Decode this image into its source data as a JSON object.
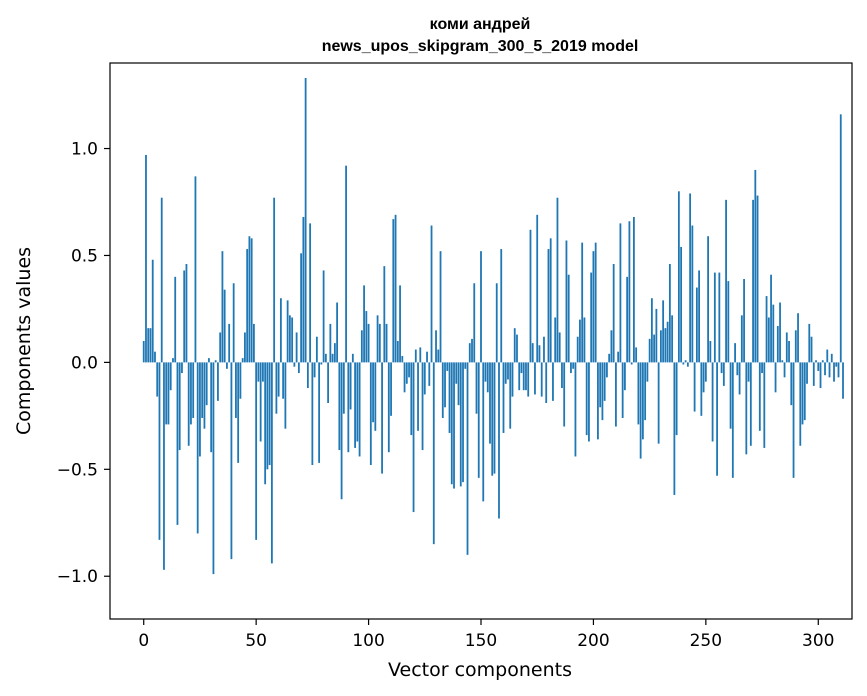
{
  "chart_data": {
    "type": "bar",
    "title": [
      "коми андрей",
      "news_upos_skipgram_300_5_2019 model"
    ],
    "xlabel": "Vector components",
    "ylabel": "Components values",
    "xlim": [
      -15,
      315
    ],
    "ylim": [
      -1.2,
      1.4
    ],
    "xticks": [
      0,
      50,
      100,
      150,
      200,
      250,
      300
    ],
    "xtick_labels": [
      "0",
      "50",
      "100",
      "150",
      "200",
      "250",
      "300"
    ],
    "yticks": [
      -1.0,
      -0.5,
      0.0,
      0.5,
      1.0
    ],
    "ytick_labels": [
      "−1.0",
      "−0.5",
      "0.0",
      "0.5",
      "1.0"
    ],
    "grid": false,
    "bar_color": "#1f77b4",
    "values": [
      0.1,
      0.97,
      0.16,
      0.16,
      0.48,
      0.05,
      -0.16,
      -0.83,
      0.77,
      -0.97,
      -0.29,
      -0.29,
      -0.13,
      0.02,
      0.4,
      -0.76,
      -0.41,
      -0.05,
      0.43,
      0.46,
      -0.39,
      -0.29,
      -0.26,
      0.87,
      -0.8,
      -0.44,
      -0.26,
      -0.31,
      -0.2,
      0.02,
      -0.42,
      -0.99,
      0.01,
      -0.18,
      0.14,
      0.52,
      0.34,
      -0.03,
      0.18,
      -0.92,
      0.37,
      -0.26,
      -0.47,
      -0.17,
      0.02,
      0.14,
      0.53,
      0.59,
      0.58,
      0.18,
      -0.83,
      -0.09,
      -0.37,
      -0.09,
      -0.57,
      -0.5,
      -0.48,
      -0.94,
      0.77,
      -0.24,
      -0.16,
      0.3,
      -0.17,
      -0.31,
      0.29,
      0.22,
      0.21,
      -0.02,
      0.14,
      -0.05,
      0.51,
      0.68,
      1.33,
      -0.12,
      0.65,
      -0.48,
      -0.07,
      0.12,
      -0.47,
      -0.01,
      0.43,
      0.04,
      -0.19,
      0.18,
      0.04,
      0.09,
      0.28,
      -0.41,
      -0.64,
      -0.24,
      0.92,
      -0.42,
      -0.22,
      0.04,
      -0.4,
      -0.37,
      -0.44,
      0.15,
      0.36,
      0.24,
      0.18,
      -0.48,
      -0.28,
      -0.32,
      0.22,
      0.18,
      -0.52,
      0.45,
      0.18,
      -0.42,
      -0.25,
      0.67,
      0.69,
      0.1,
      0.36,
      0.03,
      -0.14,
      -0.1,
      -0.07,
      -0.34,
      -0.7,
      0.06,
      -0.32,
      0.07,
      -0.41,
      -0.15,
      0.05,
      -0.11,
      0.64,
      -0.85,
      0.15,
      0.06,
      0.52,
      -0.26,
      -0.21,
      -0.04,
      -0.33,
      -0.57,
      -0.59,
      -0.1,
      -0.2,
      -0.58,
      -0.56,
      -0.03,
      -0.9,
      0.09,
      0.11,
      0.37,
      -0.24,
      -0.54,
      0.52,
      -0.65,
      -0.09,
      -0.14,
      -0.38,
      -0.53,
      -0.52,
      0.37,
      -0.73,
      0.53,
      -0.33,
      -0.1,
      -0.08,
      -0.31,
      -0.16,
      0.16,
      0.13,
      -0.13,
      -0.05,
      -0.13,
      -0.13,
      -0.16,
      0.62,
      0.09,
      -0.15,
      0.69,
      0.08,
      -0.16,
      0.12,
      -0.19,
      0.53,
      0.58,
      -0.18,
      0.21,
      0.77,
      0.14,
      -0.12,
      -0.3,
      0.57,
      0.41,
      -0.05,
      -0.03,
      -0.44,
      0.12,
      0.2,
      0.56,
      0.21,
      -0.34,
      -0.37,
      0.42,
      0.52,
      0.56,
      -0.36,
      -0.21,
      -0.27,
      -0.18,
      -0.07,
      0.04,
      0.15,
      0.46,
      -0.3,
      0.05,
      0.65,
      -0.26,
      -0.13,
      0.4,
      0.66,
      -0.01,
      0.68,
      0.07,
      -0.29,
      -0.45,
      -0.36,
      -0.27,
      -0.09,
      0.11,
      0.3,
      0.13,
      0.25,
      -0.38,
      0.15,
      0.29,
      0.16,
      0.19,
      0.46,
      0.22,
      -0.62,
      -0.34,
      0.8,
      0.54,
      -0.01,
      0.01,
      -0.02,
      0.79,
      0.64,
      -0.23,
      0.35,
      0.43,
      -0.25,
      -0.14,
      -0.09,
      0.59,
      0.1,
      -0.37,
      0.42,
      -0.53,
      0.42,
      -0.05,
      -0.11,
      0.76,
      0.38,
      -0.31,
      -0.54,
      0.09,
      -0.06,
      -0.15,
      0.22,
      0.39,
      -0.43,
      -0.09,
      -0.39,
      0.76,
      0.9,
      0.78,
      -0.32,
      -0.05,
      -0.4,
      0.31,
      0.21,
      0.41,
      0.27,
      -0.14,
      0.17,
      0.28,
      0.01,
      -0.07,
      0.14,
      0.1,
      -0.2,
      -0.54,
      0.15,
      0.23,
      -0.39,
      -0.29,
      -0.27,
      -0.1,
      0.18,
      0.12,
      -0.11,
      0.01,
      -0.04,
      -0.12,
      0.01,
      -0.06,
      0.06,
      -0.07,
      0.04,
      -0.09,
      -0.02,
      -0.07,
      1.16,
      -0.17
    ]
  }
}
